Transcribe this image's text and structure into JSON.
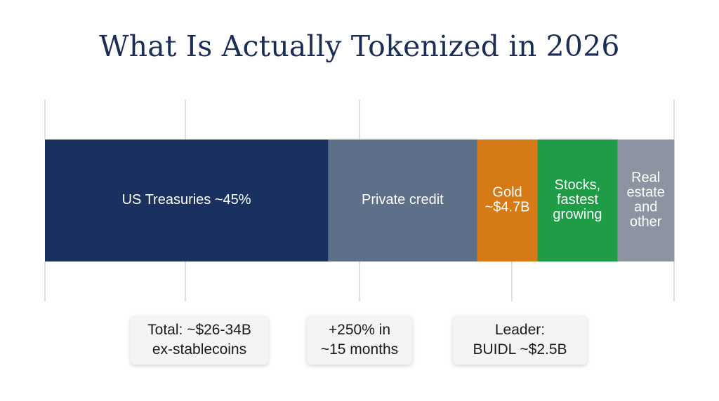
{
  "title": "What Is Actually Tokenized in 2026",
  "chart_data": {
    "type": "bar",
    "orientation": "horizontal-stacked",
    "categories": [
      "US Treasuries ~45%",
      "Private credit",
      "Gold ~$4.7B",
      "Stocks, fastest growing",
      "Real estate and other"
    ],
    "segments": [
      {
        "label_lines": [
          "US Treasuries ~45%"
        ],
        "value": 45,
        "color": "#1a3160"
      },
      {
        "label_lines": [
          "Private credit"
        ],
        "value": 23.7,
        "color": "#5e6f89"
      },
      {
        "label_lines": [
          "Gold",
          "~$4.7B"
        ],
        "value": 9.6,
        "color": "#d57a16"
      },
      {
        "label_lines": [
          "Stocks,",
          "fastest",
          "growing"
        ],
        "value": 12.7,
        "color": "#1f9c46"
      },
      {
        "label_lines": [
          "Real",
          "estate",
          "and",
          "other"
        ],
        "value": 9,
        "color": "#8c94a2"
      }
    ],
    "title": "What Is Actually Tokenized in 2026",
    "grid": true
  },
  "callouts": [
    {
      "text": "Total: ~$26-34B\nex-stablecoins"
    },
    {
      "text": "+250% in\n~15 months"
    },
    {
      "text": "Leader:\nBUIDL ~$2.5B"
    }
  ]
}
